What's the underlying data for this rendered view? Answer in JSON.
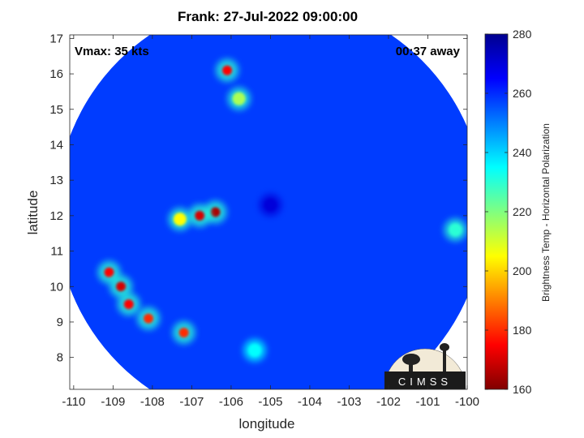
{
  "chart_data": {
    "type": "heatmap",
    "title": "Frank: 27-Jul-2022 09:00:00",
    "xlabel": "longitude",
    "ylabel": "latitude",
    "xlim": [
      -110.1,
      -100
    ],
    "ylim": [
      7.1,
      17.1
    ],
    "xticks": [
      -110,
      -109,
      -108,
      -107,
      -106,
      -105,
      -104,
      -103,
      -102,
      -101,
      -100
    ],
    "yticks": [
      8,
      9,
      10,
      11,
      12,
      13,
      14,
      15,
      16,
      17
    ],
    "colorbar": {
      "label": "Brightness Temp - Horizontal Polarization",
      "range": [
        160,
        280
      ],
      "ticks": [
        160,
        180,
        200,
        220,
        240,
        260,
        280
      ],
      "colormap": "jet"
    },
    "annotations": {
      "vmax": "Vmax: 35 kts",
      "time_offset": "00:37 away"
    },
    "swath": {
      "center": [
        -105.0,
        12.1
      ],
      "radius_deg": 5.45
    },
    "background_tb": 258,
    "features": [
      {
        "name": "eye",
        "lon": -105.0,
        "lat": 12.3,
        "tb": 270
      },
      {
        "name": "rainband-north-1",
        "lon": -106.1,
        "lat": 16.1,
        "tb": 175
      },
      {
        "name": "rainband-north-2",
        "lon": -105.8,
        "lat": 15.3,
        "tb": 215
      },
      {
        "name": "convection-core-1",
        "lon": -106.4,
        "lat": 12.1,
        "tb": 165
      },
      {
        "name": "convection-core-2",
        "lon": -106.8,
        "lat": 12.0,
        "tb": 170
      },
      {
        "name": "convection-arm",
        "lon": -107.3,
        "lat": 11.9,
        "tb": 205
      },
      {
        "name": "band-sw-1",
        "lon": -109.1,
        "lat": 10.4,
        "tb": 175
      },
      {
        "name": "band-sw-2",
        "lon": -108.8,
        "lat": 10.0,
        "tb": 170
      },
      {
        "name": "band-sw-3",
        "lon": -108.6,
        "lat": 9.5,
        "tb": 175
      },
      {
        "name": "band-sw-4",
        "lon": -108.1,
        "lat": 9.1,
        "tb": 180
      },
      {
        "name": "band-sw-5",
        "lon": -107.2,
        "lat": 8.7,
        "tb": 180
      },
      {
        "name": "band-south",
        "lon": -105.4,
        "lat": 8.2,
        "tb": 235
      },
      {
        "name": "band-east",
        "lon": -100.3,
        "lat": 11.6,
        "tb": 230
      }
    ]
  },
  "logo": {
    "text": "CIMSS"
  }
}
